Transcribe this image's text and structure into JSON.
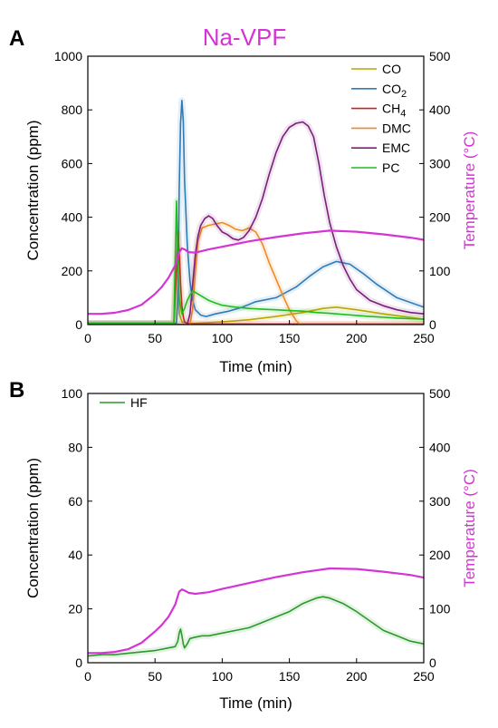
{
  "chart_data": [
    {
      "panel": "A",
      "type": "line",
      "title": "Na-VPF",
      "title_color": "#d633d6",
      "xlabel": "Time (min)",
      "ylabel": "Concentration (ppm)",
      "y2label": "Temperature (°C)",
      "y2label_color": "#d633d6",
      "xlim": [
        0,
        250
      ],
      "ylim": [
        0,
        1000
      ],
      "y2lim": [
        0,
        500
      ],
      "xticks": [
        0,
        50,
        100,
        150,
        200,
        250
      ],
      "yticks": [
        0,
        200,
        400,
        600,
        800,
        1000
      ],
      "y2ticks": [
        0,
        100,
        200,
        300,
        400,
        500
      ],
      "legend_position": "top-right",
      "series": [
        {
          "name": "CO",
          "legend_main": "CO",
          "legend_sub": "",
          "color": "#b8a800",
          "x": [
            0,
            60,
            64,
            66,
            67,
            68,
            70,
            75,
            80,
            100,
            120,
            140,
            160,
            175,
            185,
            200,
            220,
            250
          ],
          "y": [
            3,
            3,
            3,
            200,
            250,
            40,
            10,
            4,
            5,
            10,
            18,
            30,
            45,
            60,
            65,
            55,
            40,
            20
          ]
        },
        {
          "name": "CO2",
          "legend_main": "CO",
          "legend_sub": "2",
          "color": "#2e7bb8",
          "x": [
            0,
            60,
            66,
            67,
            68,
            69,
            70,
            71,
            72,
            74,
            76,
            78,
            80,
            84,
            88,
            95,
            105,
            115,
            125,
            140,
            155,
            165,
            175,
            185,
            195,
            205,
            215,
            230,
            250
          ],
          "y": [
            5,
            5,
            5,
            100,
            500,
            750,
            835,
            760,
            540,
            300,
            160,
            90,
            55,
            35,
            30,
            40,
            50,
            65,
            85,
            100,
            140,
            180,
            215,
            235,
            225,
            190,
            150,
            100,
            65
          ]
        },
        {
          "name": "CH4",
          "legend_main": "CH",
          "legend_sub": "4",
          "color": "#cc2222",
          "x": [
            0,
            64,
            66,
            67,
            68,
            69,
            70,
            71,
            72,
            74,
            78,
            100,
            150,
            200,
            250
          ],
          "y": [
            3,
            3,
            200,
            340,
            270,
            150,
            70,
            30,
            10,
            4,
            2,
            2,
            2,
            2,
            2
          ]
        },
        {
          "name": "DMC",
          "legend_main": "DMC",
          "legend_sub": "",
          "color": "#f08a24",
          "x": [
            0,
            76,
            78,
            80,
            82,
            85,
            90,
            95,
            100,
            105,
            110,
            115,
            120,
            125,
            130,
            135,
            140,
            145,
            150,
            155,
            158,
            250
          ],
          "y": [
            0,
            0,
            60,
            200,
            310,
            360,
            370,
            375,
            380,
            370,
            355,
            350,
            360,
            345,
            300,
            230,
            170,
            110,
            55,
            15,
            0,
            0
          ]
        },
        {
          "name": "EMC",
          "legend_main": "EMC",
          "legend_sub": "",
          "color": "#7a1f7a",
          "x": [
            0,
            74,
            76,
            78,
            80,
            82,
            84,
            87,
            90,
            93,
            96,
            100,
            104,
            108,
            112,
            116,
            120,
            125,
            130,
            135,
            140,
            145,
            150,
            155,
            160,
            164,
            168,
            172,
            176,
            180,
            185,
            190,
            195,
            200,
            210,
            220,
            230,
            240,
            250
          ],
          "y": [
            0,
            0,
            40,
            150,
            260,
            330,
            370,
            395,
            405,
            395,
            370,
            345,
            335,
            320,
            315,
            325,
            350,
            400,
            470,
            560,
            640,
            700,
            735,
            750,
            755,
            740,
            700,
            600,
            480,
            380,
            290,
            220,
            170,
            130,
            90,
            70,
            55,
            45,
            40
          ]
        },
        {
          "name": "PC",
          "legend_main": "PC",
          "legend_sub": "",
          "color": "#22bb22",
          "x": [
            0,
            64,
            66,
            67,
            68,
            70,
            72,
            74,
            76,
            78,
            80,
            85,
            90,
            95,
            100,
            110,
            120,
            130,
            140,
            150,
            160,
            170,
            180,
            190,
            200,
            210,
            220,
            230,
            240,
            250
          ],
          "y": [
            5,
            5,
            460,
            250,
            100,
            40,
            60,
            90,
            110,
            125,
            120,
            105,
            90,
            80,
            72,
            65,
            60,
            57,
            55,
            52,
            50,
            45,
            42,
            38,
            34,
            30,
            27,
            24,
            22,
            20
          ]
        },
        {
          "name": "Temperature",
          "axis": "right",
          "color": "#d633d6",
          "x": [
            0,
            10,
            20,
            30,
            40,
            50,
            55,
            60,
            65,
            68,
            70,
            72,
            75,
            80,
            90,
            100,
            120,
            140,
            160,
            180,
            200,
            220,
            240,
            250
          ],
          "y": [
            20,
            20,
            22,
            27,
            37,
            57,
            70,
            87,
            110,
            135,
            142,
            140,
            135,
            134,
            140,
            145,
            155,
            163,
            170,
            175,
            173,
            168,
            162,
            158
          ]
        }
      ]
    },
    {
      "panel": "B",
      "type": "line",
      "title": "",
      "xlabel": "Time (min)",
      "ylabel": "Concentration (ppm)",
      "y2label": "Temperature (°C)",
      "y2label_color": "#d633d6",
      "xlim": [
        0,
        250
      ],
      "ylim": [
        0,
        100
      ],
      "y2lim": [
        0,
        500
      ],
      "xticks": [
        0,
        50,
        100,
        150,
        200,
        250
      ],
      "yticks": [
        0,
        20,
        40,
        60,
        80,
        100
      ],
      "y2ticks": [
        0,
        100,
        200,
        300,
        400,
        500
      ],
      "legend_position": "top-left",
      "series": [
        {
          "name": "HF",
          "legend_main": "HF",
          "legend_sub": "",
          "color": "#2a9a2a",
          "x": [
            0,
            10,
            20,
            30,
            40,
            50,
            55,
            60,
            65,
            67,
            68,
            69,
            70,
            71,
            72,
            74,
            76,
            80,
            85,
            90,
            100,
            110,
            120,
            130,
            140,
            150,
            160,
            170,
            175,
            180,
            190,
            200,
            210,
            220,
            230,
            240,
            250
          ],
          "y": [
            2.5,
            3,
            3,
            3.5,
            4,
            4.5,
            5,
            5.5,
            6,
            8,
            11,
            12.5,
            10,
            7,
            5.5,
            7,
            9,
            9.5,
            10,
            10,
            11,
            12,
            13,
            15,
            17,
            19,
            22,
            24,
            24.5,
            24,
            22,
            19,
            15.5,
            12,
            10,
            8,
            7
          ]
        },
        {
          "name": "Temperature",
          "axis": "right",
          "color": "#d633d6",
          "x": [
            0,
            10,
            20,
            30,
            40,
            50,
            55,
            60,
            65,
            68,
            70,
            72,
            75,
            80,
            90,
            100,
            120,
            140,
            160,
            180,
            200,
            220,
            240,
            250
          ],
          "y": [
            18,
            18,
            20,
            25,
            37,
            58,
            70,
            85,
            108,
            132,
            136,
            134,
            130,
            128,
            131,
            137,
            148,
            159,
            168,
            175,
            174,
            169,
            163,
            158
          ]
        }
      ]
    }
  ]
}
